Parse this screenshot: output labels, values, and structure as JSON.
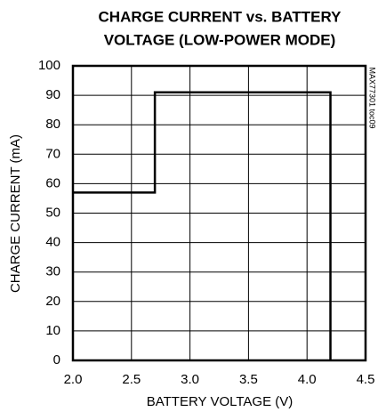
{
  "chart_data": {
    "type": "line",
    "title": [
      "CHARGE CURRENT vs. BATTERY",
      "VOLTAGE (LOW-POWER MODE)"
    ],
    "xlabel": "BATTERY VOLTAGE (V)",
    "ylabel": "CHARGE CURRENT (mA)",
    "annotation": "MAX77301 toc09",
    "x": [
      2.0,
      2.7,
      2.7,
      4.2,
      4.2
    ],
    "series": [
      {
        "color": "#000000",
        "values": [
          57,
          57,
          91,
          91,
          0
        ]
      }
    ],
    "xlim": [
      2.0,
      4.5
    ],
    "xticks": [
      {
        "value": 2.0,
        "label": "2.0"
      },
      2.5,
      {
        "value": 3.0,
        "label": "3.0"
      },
      3.5,
      {
        "value": 4.0,
        "label": "4.0"
      },
      4.5
    ],
    "ylim": [
      0,
      100
    ],
    "yticks": [
      0,
      10,
      20,
      30,
      40,
      50,
      60,
      70,
      80,
      90,
      100
    ],
    "grid": true
  }
}
